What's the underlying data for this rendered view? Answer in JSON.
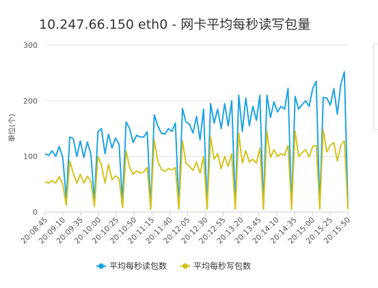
{
  "chart_data": {
    "type": "line",
    "title": "10.247.66.150 eth0 - 网卡平均每秒读写包量",
    "ylabel": "单位(个)",
    "xlabel": "",
    "ylim": [
      0,
      300
    ],
    "yticks": [
      0,
      100,
      200,
      300
    ],
    "grid": true,
    "legend": "bottom",
    "x_tick_labels": [
      "20:08:45",
      "20:09:10",
      "20:09:35",
      "20:10:00",
      "20:10:25",
      "20:10:50",
      "20:11:15",
      "20:11:40",
      "20:12:05",
      "20:12:30",
      "20:12:55",
      "20:13:20",
      "20:13:45",
      "20:14:10",
      "20:14:35",
      "20:15:00",
      "20:15:25",
      "20:15:50"
    ],
    "series": [
      {
        "name": "平均每秒读包数",
        "color": "#1ba3e3",
        "values": [
          105,
          102,
          110,
          100,
          118,
          98,
          25,
          135,
          132,
          100,
          128,
          98,
          126,
          104,
          20,
          145,
          150,
          105,
          140,
          115,
          133,
          122,
          18,
          162,
          150,
          125,
          138,
          135,
          135,
          144,
          8,
          175,
          155,
          142,
          140,
          150,
          145,
          160,
          10,
          186,
          162,
          158,
          142,
          172,
          130,
          185,
          8,
          195,
          160,
          185,
          150,
          195,
          155,
          200,
          10,
          210,
          145,
          205,
          155,
          190,
          165,
          210,
          8,
          210,
          170,
          198,
          180,
          190,
          185,
          222,
          8,
          208,
          185,
          193,
          200,
          190,
          222,
          235,
          8,
          206,
          205,
          192,
          222,
          176,
          230,
          252,
          8
        ]
      },
      {
        "name": "平均每秒写包数",
        "color": "#d4c21d",
        "values": [
          55,
          52,
          57,
          52,
          64,
          50,
          12,
          92,
          70,
          52,
          68,
          52,
          64,
          55,
          10,
          100,
          85,
          52,
          86,
          58,
          65,
          60,
          8,
          110,
          80,
          68,
          74,
          70,
          72,
          80,
          5,
          130,
          92,
          77,
          73,
          78,
          76,
          80,
          5,
          128,
          88,
          82,
          75,
          90,
          70,
          100,
          5,
          135,
          95,
          105,
          78,
          100,
          82,
          105,
          5,
          142,
          88,
          110,
          90,
          95,
          88,
          115,
          5,
          145,
          98,
          112,
          100,
          105,
          102,
          120,
          5,
          146,
          100,
          107,
          112,
          99,
          118,
          120,
          5,
          148,
          108,
          120,
          125,
          92,
          120,
          128,
          5
        ]
      }
    ]
  }
}
